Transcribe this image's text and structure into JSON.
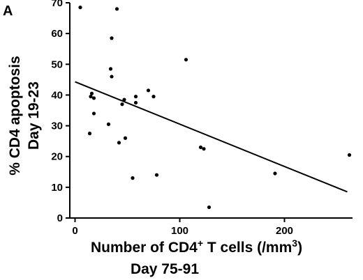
{
  "chart_data": {
    "type": "scatter",
    "panel_label": "A",
    "xlabel_prefix": "Number of CD4",
    "xlabel_sup": "+",
    "xlabel_mid": " T cells (/mm",
    "xlabel_sup2": "3",
    "xlabel_suffix": ")",
    "xlabel_line2": "Day 75-91",
    "ylabel_line1": "% CD4 apoptosis",
    "ylabel_line2": "Day 19-23",
    "xlim": [
      -5,
      265
    ],
    "ylim": [
      0,
      70
    ],
    "xticks": [
      0,
      100,
      200
    ],
    "yticks": [
      0,
      10,
      20,
      30,
      40,
      50,
      60,
      70
    ],
    "points": [
      {
        "x": 5,
        "y": 68.5
      },
      {
        "x": 40,
        "y": 68
      },
      {
        "x": 35,
        "y": 58.5
      },
      {
        "x": 34,
        "y": 48.5
      },
      {
        "x": 35,
        "y": 46
      },
      {
        "x": 106,
        "y": 51.5
      },
      {
        "x": 16,
        "y": 40.5
      },
      {
        "x": 15,
        "y": 39.5
      },
      {
        "x": 18,
        "y": 39
      },
      {
        "x": 18,
        "y": 34
      },
      {
        "x": 58,
        "y": 39.5
      },
      {
        "x": 70,
        "y": 41.5
      },
      {
        "x": 75,
        "y": 39.5
      },
      {
        "x": 47,
        "y": 38.5
      },
      {
        "x": 45,
        "y": 37
      },
      {
        "x": 58,
        "y": 37.5
      },
      {
        "x": 32,
        "y": 30.5
      },
      {
        "x": 14,
        "y": 27.5
      },
      {
        "x": 48,
        "y": 26
      },
      {
        "x": 42,
        "y": 24.5
      },
      {
        "x": 120,
        "y": 23
      },
      {
        "x": 123,
        "y": 22.5
      },
      {
        "x": 55,
        "y": 13
      },
      {
        "x": 78,
        "y": 14
      },
      {
        "x": 191,
        "y": 14.5
      },
      {
        "x": 262,
        "y": 20.5
      },
      {
        "x": 128,
        "y": 3.5
      }
    ],
    "regression_line": {
      "x": [
        0,
        260
      ],
      "y": [
        44.3,
        8.5
      ]
    },
    "grid": false,
    "legend": "none"
  }
}
